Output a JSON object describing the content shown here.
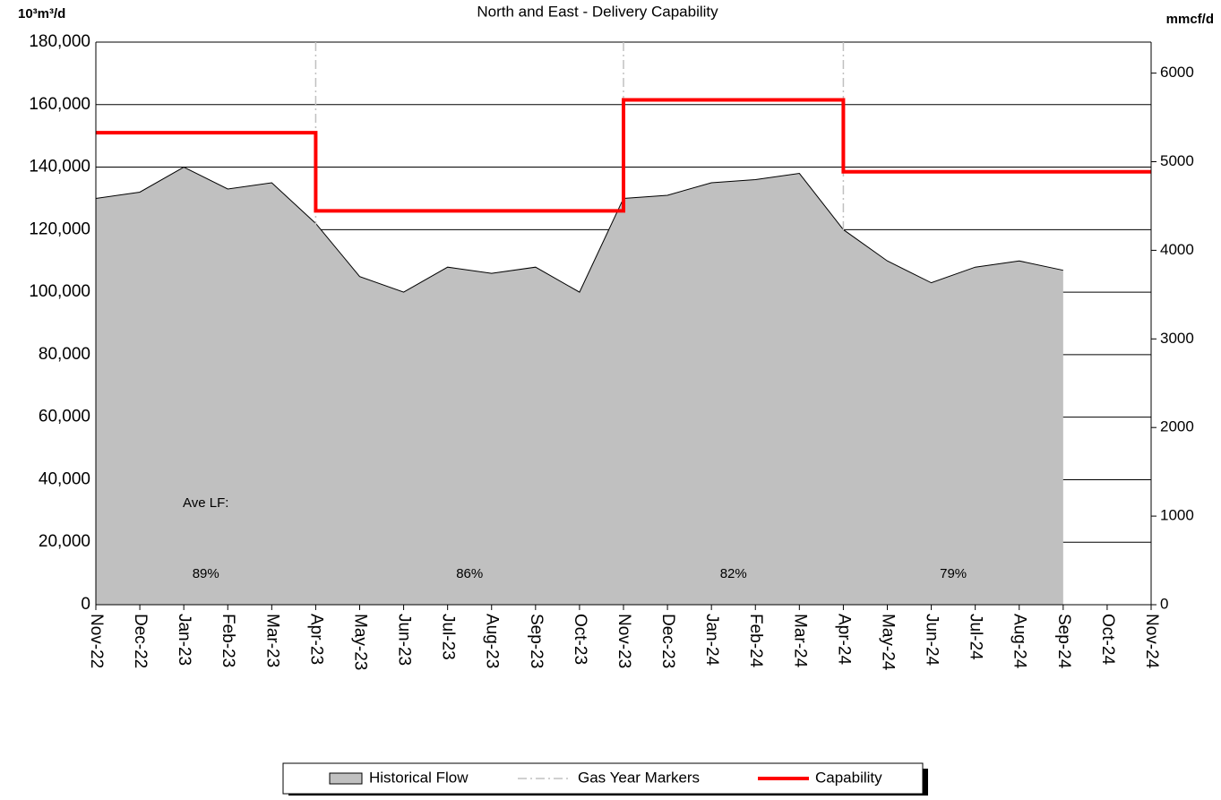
{
  "chart_data": {
    "type": "area",
    "title": "North and East - Delivery Capability",
    "y_axis_label": "10³m³/d",
    "y2_axis_label": "mmcf/d",
    "categories": [
      "Nov-22",
      "Dec-22",
      "Jan-23",
      "Feb-23",
      "Mar-23",
      "Apr-23",
      "May-23",
      "Jun-23",
      "Jul-23",
      "Aug-23",
      "Sep-23",
      "Oct-23",
      "Nov-23",
      "Dec-23",
      "Jan-24",
      "Feb-24",
      "Mar-24",
      "Apr-24",
      "May-24",
      "Jun-24",
      "Jul-24",
      "Aug-24",
      "Sep-24",
      "Oct-24",
      "Nov-24"
    ],
    "series": [
      {
        "name": "Historical Flow",
        "type": "area",
        "color": "#c0c0c0",
        "values": [
          130000,
          132000,
          140000,
          133000,
          135000,
          122000,
          105000,
          100000,
          108000,
          106000,
          108000,
          100000,
          130000,
          131000,
          135000,
          136000,
          138000,
          120000,
          110000,
          103000,
          108000,
          110000,
          107000,
          null,
          null
        ]
      },
      {
        "name": "Capability",
        "type": "step",
        "color": "#ff0000",
        "values": [
          151000,
          151000,
          151000,
          151000,
          151000,
          126000,
          126000,
          126000,
          126000,
          126000,
          126000,
          126000,
          161500,
          161500,
          161500,
          161500,
          161500,
          138500,
          138500,
          138500,
          138500,
          138500,
          138500,
          138500,
          138500
        ]
      }
    ],
    "markers": {
      "name": "Gas Year Markers",
      "color": "#c0c0c0",
      "at": [
        "Apr-23",
        "Nov-23",
        "Apr-24"
      ]
    },
    "load_factor": {
      "label": "Ave LF:",
      "values": [
        "89%",
        "86%",
        "82%",
        "79%"
      ]
    },
    "ylim": [
      0,
      180000
    ],
    "yticks": [
      0,
      {
        "value": 20000,
        "label": "20,000"
      },
      {
        "value": 40000,
        "label": "40,000"
      },
      {
        "value": 60000,
        "label": "60,000"
      },
      {
        "value": 80000,
        "label": "80,000"
      },
      {
        "value": 100000,
        "label": "100,000"
      },
      {
        "value": 120000,
        "label": "120,000"
      },
      {
        "value": 140000,
        "label": "140,000"
      },
      {
        "value": 160000,
        "label": "160,000"
      },
      {
        "value": 180000,
        "label": "180,000"
      }
    ],
    "y2lim": [
      0,
      6350
    ],
    "y2ticks": [
      0,
      1000,
      2000,
      3000,
      4000,
      5000,
      6000
    ],
    "grid": true,
    "legend": "bottom"
  }
}
